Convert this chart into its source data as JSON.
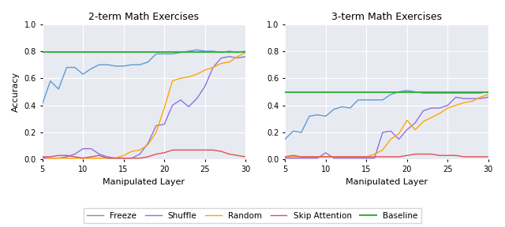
{
  "title_left": "2-term Math Exercises",
  "title_right": "3-term Math Exercises",
  "xlabel": "Manipulated Layer",
  "ylabel": "Accuracy",
  "xlim": [
    5,
    30
  ],
  "ylim": [
    0.0,
    1.0
  ],
  "xticks": [
    5,
    10,
    15,
    20,
    25,
    30
  ],
  "yticks": [
    0.0,
    0.2,
    0.4,
    0.6,
    0.8,
    1.0
  ],
  "background_color": "#e8eaf2",
  "line_colors": {
    "freeze": "#5b9bd5",
    "shuffle": "#9370db",
    "random": "#ffa500",
    "skip": "#e05050",
    "baseline": "#3cb043"
  },
  "left": {
    "freeze": [
      0.41,
      0.58,
      0.52,
      0.68,
      0.68,
      0.63,
      0.67,
      0.7,
      0.7,
      0.69,
      0.69,
      0.7,
      0.7,
      0.72,
      0.78,
      0.78,
      0.78,
      0.79,
      0.8,
      0.81,
      0.8,
      0.8,
      0.79,
      0.8,
      0.79,
      0.8
    ],
    "shuffle": [
      0.01,
      0.01,
      0.01,
      0.02,
      0.04,
      0.08,
      0.08,
      0.04,
      0.02,
      0.01,
      0.01,
      0.01,
      0.04,
      0.12,
      0.25,
      0.26,
      0.4,
      0.44,
      0.39,
      0.45,
      0.54,
      0.68,
      0.75,
      0.76,
      0.75,
      0.76
    ],
    "random": [
      0.02,
      0.01,
      0.01,
      0.01,
      0.01,
      0.01,
      0.01,
      0.01,
      0.01,
      0.01,
      0.03,
      0.06,
      0.07,
      0.11,
      0.2,
      0.38,
      0.58,
      0.6,
      0.61,
      0.63,
      0.66,
      0.68,
      0.71,
      0.72,
      0.76,
      0.79
    ],
    "skip": [
      0.02,
      0.02,
      0.03,
      0.03,
      0.02,
      0.01,
      0.02,
      0.03,
      0.01,
      0.01,
      0.01,
      0.01,
      0.01,
      0.02,
      0.04,
      0.05,
      0.07,
      0.07,
      0.07,
      0.07,
      0.07,
      0.07,
      0.06,
      0.04,
      0.03,
      0.02
    ],
    "baseline": 0.795
  },
  "right": {
    "freeze": [
      0.15,
      0.21,
      0.2,
      0.32,
      0.33,
      0.32,
      0.37,
      0.39,
      0.38,
      0.44,
      0.44,
      0.44,
      0.44,
      0.48,
      0.5,
      0.51,
      0.5,
      0.49,
      0.49,
      0.49,
      0.49,
      0.49,
      0.49,
      0.49,
      0.49,
      0.5
    ],
    "shuffle": [
      0.01,
      0.01,
      0.01,
      0.01,
      0.01,
      0.05,
      0.01,
      0.01,
      0.01,
      0.01,
      0.01,
      0.01,
      0.2,
      0.21,
      0.15,
      0.22,
      0.27,
      0.36,
      0.38,
      0.38,
      0.4,
      0.46,
      0.45,
      0.45,
      0.45,
      0.46
    ],
    "random": [
      0.02,
      0.02,
      0.02,
      0.02,
      0.02,
      0.02,
      0.02,
      0.02,
      0.02,
      0.02,
      0.02,
      0.04,
      0.07,
      0.15,
      0.19,
      0.29,
      0.22,
      0.28,
      0.31,
      0.34,
      0.38,
      0.4,
      0.42,
      0.43,
      0.46,
      0.48
    ],
    "skip": [
      0.02,
      0.03,
      0.02,
      0.02,
      0.02,
      0.02,
      0.02,
      0.02,
      0.02,
      0.02,
      0.02,
      0.02,
      0.02,
      0.02,
      0.02,
      0.03,
      0.04,
      0.04,
      0.04,
      0.03,
      0.03,
      0.03,
      0.02,
      0.02,
      0.02,
      0.02
    ],
    "baseline": 0.495
  },
  "legend_labels": [
    "Freeze",
    "Shuffle",
    "Random",
    "Skip Attention",
    "Baseline"
  ]
}
